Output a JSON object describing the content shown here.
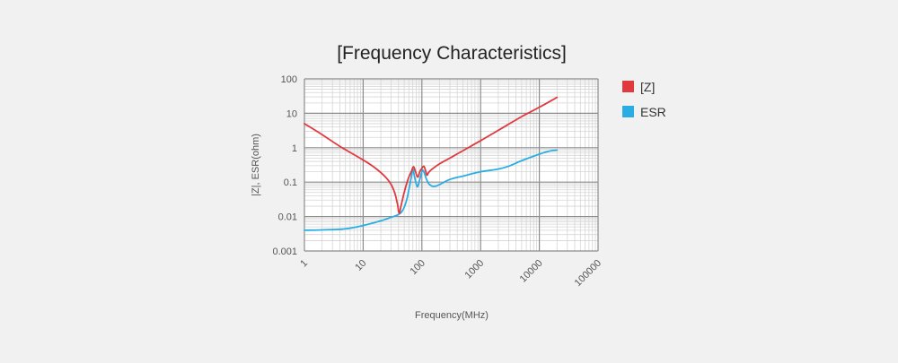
{
  "chart_data": {
    "type": "line",
    "title": "[Frequency Characteristics]",
    "xlabel": "Frequency(MHz)",
    "ylabel": "|Z|, ESR(ohm)",
    "x_scale": "log",
    "y_scale": "log",
    "xlim": [
      1,
      100000
    ],
    "ylim": [
      0.001,
      100
    ],
    "x_ticks": [
      "1",
      "10",
      "100",
      "1000",
      "10000",
      "100000"
    ],
    "y_ticks": [
      "100",
      "10",
      "1",
      "0.1",
      "0.01",
      "0.001"
    ],
    "grid": true,
    "legend_position": "right",
    "series": [
      {
        "name": "[Z]",
        "color": "#e0393e",
        "points": [
          [
            1,
            5
          ],
          [
            2,
            2.4
          ],
          [
            4,
            1.1
          ],
          [
            8,
            0.55
          ],
          [
            15,
            0.28
          ],
          [
            25,
            0.13
          ],
          [
            33,
            0.06
          ],
          [
            38,
            0.025
          ],
          [
            41,
            0.0125
          ],
          [
            44,
            0.02
          ],
          [
            50,
            0.05
          ],
          [
            58,
            0.12
          ],
          [
            66,
            0.2
          ],
          [
            72,
            0.28
          ],
          [
            78,
            0.2
          ],
          [
            85,
            0.14
          ],
          [
            92,
            0.2
          ],
          [
            100,
            0.25
          ],
          [
            108,
            0.29
          ],
          [
            115,
            0.22
          ],
          [
            122,
            0.16
          ],
          [
            130,
            0.19
          ],
          [
            150,
            0.24
          ],
          [
            200,
            0.34
          ],
          [
            300,
            0.5
          ],
          [
            500,
            0.82
          ],
          [
            1000,
            1.6
          ],
          [
            2000,
            3.2
          ],
          [
            5000,
            8
          ],
          [
            10000,
            15
          ],
          [
            20000,
            29
          ]
        ]
      },
      {
        "name": "ESR",
        "color": "#29ade3",
        "points": [
          [
            1,
            0.004
          ],
          [
            2,
            0.0041
          ],
          [
            5,
            0.0044
          ],
          [
            10,
            0.0055
          ],
          [
            20,
            0.0075
          ],
          [
            30,
            0.0095
          ],
          [
            40,
            0.0115
          ],
          [
            48,
            0.016
          ],
          [
            55,
            0.03
          ],
          [
            60,
            0.06
          ],
          [
            66,
            0.14
          ],
          [
            70,
            0.24
          ],
          [
            74,
            0.16
          ],
          [
            80,
            0.09
          ],
          [
            85,
            0.075
          ],
          [
            92,
            0.12
          ],
          [
            100,
            0.2
          ],
          [
            105,
            0.22
          ],
          [
            112,
            0.17
          ],
          [
            120,
            0.12
          ],
          [
            135,
            0.085
          ],
          [
            160,
            0.075
          ],
          [
            200,
            0.085
          ],
          [
            300,
            0.12
          ],
          [
            500,
            0.15
          ],
          [
            1000,
            0.2
          ],
          [
            2000,
            0.24
          ],
          [
            3000,
            0.29
          ],
          [
            5000,
            0.42
          ],
          [
            10000,
            0.65
          ],
          [
            15000,
            0.8
          ],
          [
            20000,
            0.85
          ]
        ]
      }
    ]
  }
}
